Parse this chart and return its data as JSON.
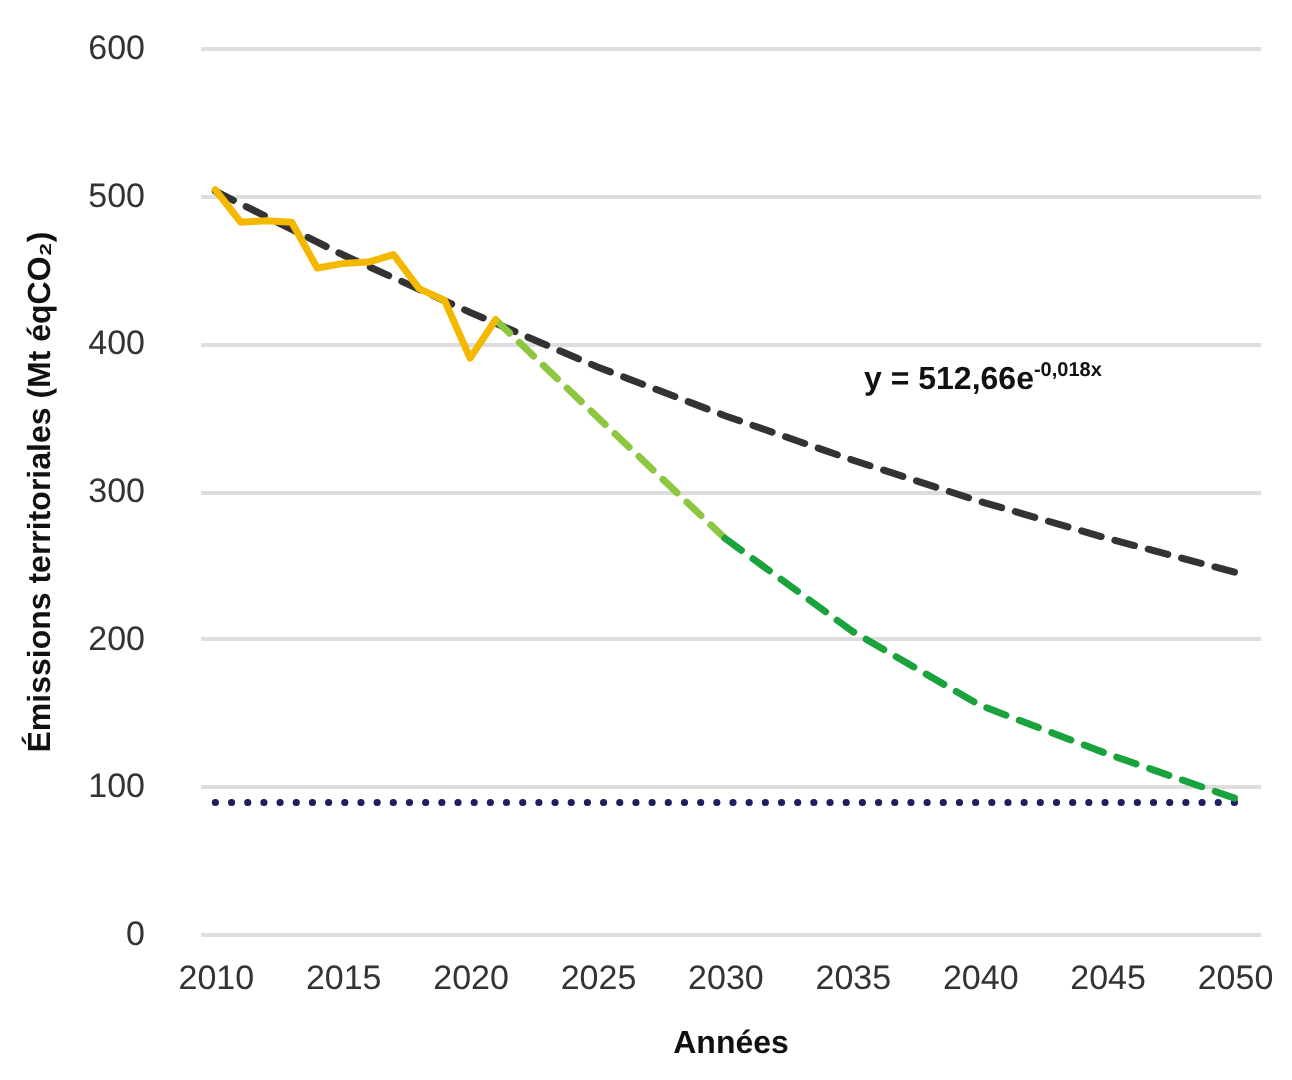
{
  "chart_data": {
    "type": "line",
    "xlabel": "Années",
    "ylabel": "Émissions territoriales (Mt éqCO₂)",
    "xlim": [
      2009.4,
      2051
    ],
    "xticks": [
      2010,
      2015,
      2020,
      2025,
      2030,
      2035,
      2040,
      2045,
      2050
    ],
    "ylim": [
      0,
      600
    ],
    "yticks": [
      0,
      100,
      200,
      300,
      400,
      500,
      600
    ],
    "grid": "y",
    "marker": "none",
    "annotations": [
      "y = 512,66e$^{-0,018x}$"
    ],
    "series": [
      {
        "color": "#1e1f5c",
        "line_style": "dotted",
        "x": [
          2010,
          2050
        ],
        "values": [
          89,
          89
        ]
      },
      {
        "color": "#333333",
        "line_style": "dashed",
        "x": [
          2010,
          2015,
          2020,
          2025,
          2030,
          2035,
          2040,
          2045,
          2050
        ],
        "values": [
          503,
          460,
          421,
          384,
          351,
          321,
          293,
          268,
          245
        ]
      },
      {
        "color": "#8dc63f",
        "line_style": "dashed",
        "x": [
          2021,
          2025,
          2030
        ],
        "values": [
          416,
          350,
          268
        ]
      },
      {
        "color": "#1aa33c",
        "line_style": "dashed",
        "x": [
          2030,
          2035,
          2040,
          2045,
          2050
        ],
        "values": [
          268,
          205,
          155,
          122,
          92
        ]
      },
      {
        "color": "#f5b800",
        "line_style": "solid",
        "x": [
          2010,
          2011,
          2012,
          2013,
          2014,
          2015,
          2016,
          2017,
          2018,
          2019,
          2020,
          2021
        ],
        "values": [
          504,
          482,
          483,
          482,
          451,
          454,
          455,
          460,
          437,
          429,
          390,
          416
        ]
      }
    ]
  }
}
